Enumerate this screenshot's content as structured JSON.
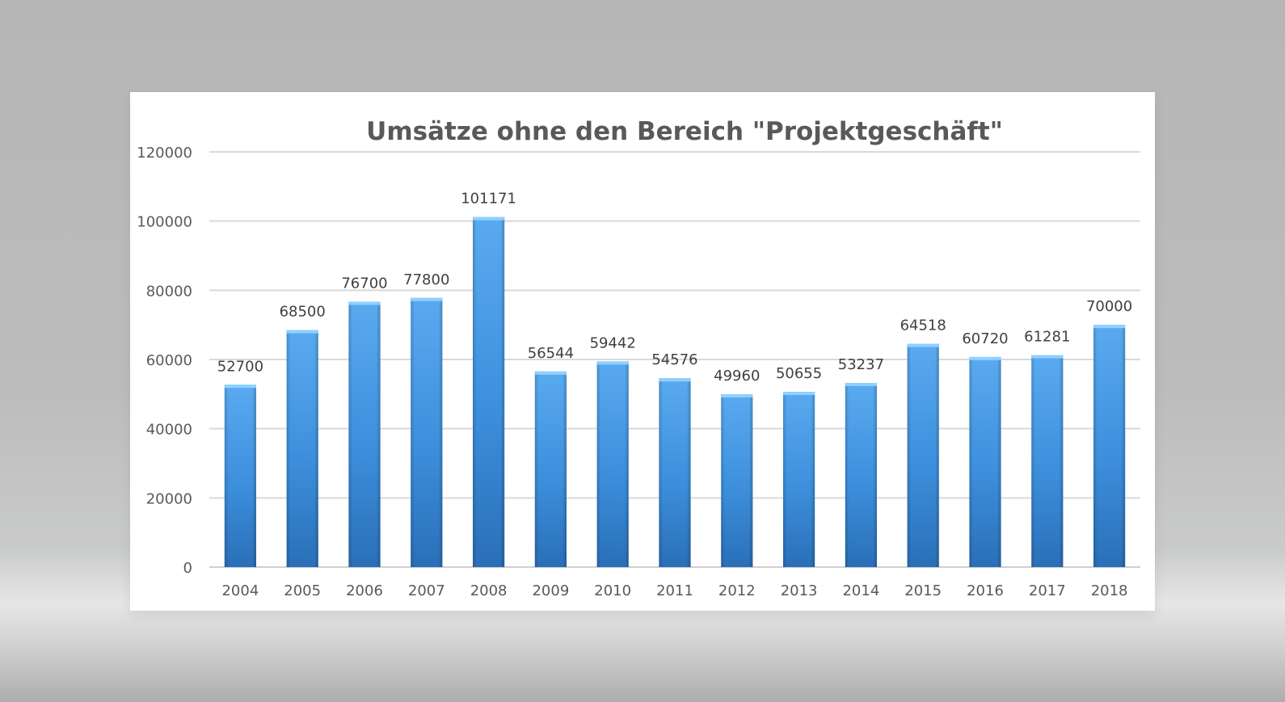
{
  "chart_data": {
    "type": "bar",
    "title": "Umsätze ohne den Bereich \"Projektgeschäft\"",
    "xlabel": "",
    "ylabel": "",
    "categories": [
      "2004",
      "2005",
      "2006",
      "2007",
      "2008",
      "2009",
      "2010",
      "2011",
      "2012",
      "2013",
      "2014",
      "2015",
      "2016",
      "2017",
      "2018"
    ],
    "values": [
      52700,
      68500,
      76700,
      77800,
      101171,
      56544,
      59442,
      54576,
      49960,
      50655,
      53237,
      64518,
      60720,
      61281,
      70000
    ],
    "ylim": [
      0,
      120000
    ],
    "yticks": [
      0,
      20000,
      40000,
      60000,
      80000,
      100000,
      120000
    ],
    "grid": true,
    "legend": "none",
    "data_labels": true,
    "colors": {
      "bar_top": "#5aaaf0",
      "bar_mid": "#3d8fdc",
      "bar_bottom": "#2a6fb8",
      "bar_cap": "#8fd0ff",
      "grid": "#d9d9d9",
      "text": "#595959"
    }
  }
}
